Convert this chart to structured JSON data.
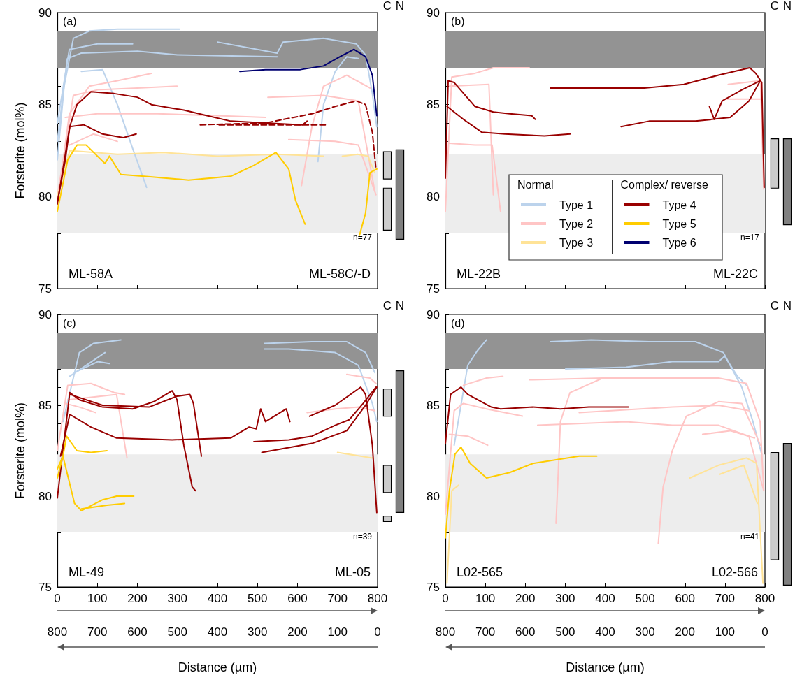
{
  "chart_data": [
    {
      "type": "line",
      "ylabel": "Forsterite (mol%)",
      "xlim": [
        0,
        800
      ],
      "xticks": [
        0,
        100,
        200,
        300,
        400,
        500,
        600,
        700,
        800
      ],
      "ylim": [
        75,
        90
      ],
      "yticks": [
        75,
        {
          "value": 76,
          "label": null
        },
        {
          "value": 77,
          "label": null
        },
        {
          "value": 78,
          "label": null
        },
        {
          "value": 79,
          "label": null
        },
        80,
        {
          "value": 81,
          "label": null
        },
        {
          "value": 82,
          "label": null
        },
        {
          "value": 83,
          "label": null
        },
        {
          "value": 84,
          "label": null
        },
        85,
        {
          "value": 86,
          "label": null
        },
        {
          "value": 87,
          "label": null
        },
        {
          "value": 88,
          "label": null
        },
        {
          "value": 89,
          "label": null
        },
        90
      ],
      "tick_labels": "y",
      "marker": "none",
      "legend": "right",
      "annotations": [
        "(a)",
        "ML-58A",
        "ML-58C/-D",
        "n=77",
        "Normal",
        "Complex/ reverse"
      ],
      "bands": [
        {
          "axis": "y",
          "from": 87,
          "to": 89,
          "color": "#939393"
        },
        {
          "axis": "y",
          "from": 78,
          "to": 82.3,
          "color": "#ededed"
        }
      ],
      "series": [
        {
          "name": "Type 1",
          "color": "#bcd3ec",
          "x": [
            0,
            17,
            40,
            80,
            150,
            305
          ],
          "values": [
            82,
            86,
            88.6,
            89,
            89.1,
            89.1
          ]
        },
        {
          "color": "#bcd3ec",
          "x": [
            0,
            25,
            60,
            200,
            300,
            549
          ],
          "values": [
            83,
            87.5,
            87.8,
            87.9,
            87.7,
            87.6
          ]
        },
        {
          "color": "#bcd3ec",
          "x": [
            0,
            30,
            100,
            188
          ],
          "values": [
            84,
            88,
            88.3,
            88.3
          ]
        },
        {
          "color": "#bcd3ec",
          "x": [
            60,
            113,
            150,
            190,
            223
          ],
          "values": [
            86.8,
            86.9,
            85,
            82.5,
            80.5
          ]
        },
        {
          "color": "#bcd3ec",
          "x": [
            400,
            549,
            564,
            665,
            747,
            770,
            787,
            798
          ],
          "values": [
            88.4,
            87.8,
            88.4,
            88.6,
            88.3,
            87.7,
            85.6,
            83.8
          ]
        },
        {
          "color": "#bcd3ec",
          "x": [
            651,
            665,
            694,
            723,
            752
          ],
          "values": [
            81.9,
            85,
            86.8,
            87.6,
            87.5
          ]
        },
        {
          "name": "Type 2",
          "color": "#ffc5c5",
          "x": [
            0,
            30,
            80,
            150,
            235
          ],
          "values": [
            79.6,
            84.5,
            86,
            86.3,
            86.7
          ]
        },
        {
          "color": "#ffc5c5",
          "x": [
            0,
            40,
            100,
            200,
            299
          ],
          "values": [
            80,
            85.5,
            85.8,
            85.9,
            86
          ]
        },
        {
          "color": "#ffc5c5",
          "x": [
            20,
            100,
            250,
            400,
            520
          ],
          "values": [
            84.3,
            84.5,
            84.5,
            84.4,
            84.3
          ]
        },
        {
          "color": "#ffc5c5",
          "x": [
            30,
            90,
            150
          ],
          "values": [
            82.8,
            83.4,
            83
          ]
        },
        {
          "color": "#ffc5c5",
          "x": [
            526,
            665,
            752,
            793
          ],
          "values": [
            85.4,
            85.5,
            85.2,
            80.3
          ]
        },
        {
          "color": "#ffc5c5",
          "x": [
            578,
            694,
            752,
            796
          ],
          "values": [
            83.1,
            83,
            82.8,
            80.1
          ]
        },
        {
          "color": "#ffc5c5",
          "x": [
            610,
            636,
            665,
            723,
            781
          ],
          "values": [
            80.6,
            83.8,
            86,
            86.6,
            85.9
          ]
        },
        {
          "name": "Type 3",
          "color": "#ffe397",
          "x": [
            0,
            31,
            150,
            264,
            400,
            550,
            665
          ],
          "values": [
            80,
            82.5,
            82.3,
            82.4,
            82.2,
            82.3,
            82.2
          ]
        },
        {
          "color": "#ffe397",
          "x": [
            712,
            750,
            776,
            793
          ],
          "values": [
            82.2,
            82.3,
            82.2,
            81.3
          ]
        },
        {
          "name": "Type 4",
          "color": "#990000",
          "x": [
            0,
            31,
            49,
            84,
            142,
            200,
            235,
            316,
            374,
            433,
            520,
            613,
            624
          ],
          "values": [
            79.6,
            83.8,
            85,
            85.7,
            85.6,
            85.4,
            85,
            84.7,
            84.4,
            84.1,
            84,
            83.9,
            84.1
          ]
        },
        {
          "color": "#990000",
          "x": [
            0,
            20,
            31,
            66,
            113,
            165,
            197
          ],
          "values": [
            79.7,
            82,
            83.8,
            83.9,
            83.4,
            83.2,
            83.4
          ]
        },
        {
          "color": "#990000",
          "line_style": "dashed",
          "x": [
            357,
            520,
            636,
            694,
            747,
            770,
            787,
            796
          ],
          "values": [
            83.9,
            84,
            84.5,
            84.9,
            85.2,
            85,
            83.5,
            81.5
          ]
        },
        {
          "color": "#990000",
          "line_style": "dashed",
          "x": [
            404,
            520,
            674
          ],
          "values": [
            83.9,
            83.9,
            83.9
          ]
        },
        {
          "name": "Type 5",
          "color": "#ffcc00",
          "x": [
            0,
            26,
            49,
            72,
            119,
            130,
            159,
            217,
            328,
            433,
            491,
            546,
            578,
            595,
            619
          ],
          "values": [
            79.2,
            82,
            82.8,
            82.8,
            81.8,
            82.2,
            81.2,
            81.1,
            80.9,
            81.1,
            81.7,
            82.4,
            81.5,
            79.8,
            78.5
          ]
        },
        {
          "color": "#ffcc00",
          "x": [
            755,
            770,
            781,
            798
          ],
          "values": [
            77.9,
            79.1,
            81.3,
            81.5
          ]
        },
        {
          "name": "Type 6",
          "color": "#000070",
          "x": [
            456,
            520,
            607,
            665,
            706,
            741,
            770,
            787,
            798
          ],
          "values": [
            86.8,
            86.9,
            86.9,
            87.1,
            87.6,
            88,
            87.6,
            86.6,
            84.4
          ]
        }
      ]
    },
    {
      "type": "bar",
      "categories": [
        "C",
        "N"
      ],
      "ylim": [
        75,
        90
      ],
      "tick_labels": false,
      "series": [
        {
          "colors": [
            "#cccccc",
            "#808080"
          ],
          "base": [
            81,
            77.7
          ],
          "values": [
            1.5,
            4.9
          ]
        },
        {
          "color": "#cccccc",
          "base": [
            78.2,
            null
          ],
          "values": [
            2.3,
            null
          ]
        }
      ]
    },
    {
      "type": "line",
      "xlim": [
        0,
        800
      ],
      "xticks": [
        0,
        100,
        200,
        300,
        400,
        500,
        600,
        700,
        800
      ],
      "ylim": [
        75,
        90
      ],
      "yticks": [
        75,
        {
          "value": 76,
          "label": null
        },
        {
          "value": 77,
          "label": null
        },
        {
          "value": 78,
          "label": null
        },
        {
          "value": 79,
          "label": null
        },
        80,
        {
          "value": 81,
          "label": null
        },
        {
          "value": 82,
          "label": null
        },
        {
          "value": 83,
          "label": null
        },
        {
          "value": 84,
          "label": null
        },
        85,
        {
          "value": 86,
          "label": null
        },
        {
          "value": 87,
          "label": null
        },
        {
          "value": 88,
          "label": null
        },
        {
          "value": 89,
          "label": null
        },
        90
      ],
      "tick_labels": "y",
      "marker": "none",
      "annotations": [
        "(b)",
        "ML-22B",
        "ML-22C",
        "n=17"
      ],
      "bands": [
        {
          "axis": "y",
          "from": 87,
          "to": 89,
          "color": "#939393"
        },
        {
          "axis": "y",
          "from": 78,
          "to": 82.3,
          "color": "#ededed"
        }
      ],
      "series": [
        {
          "color": "#ffc5c5",
          "x": [
            0,
            16,
            74,
            120,
            210
          ],
          "values": [
            79.2,
            86.5,
            86.7,
            87,
            87
          ]
        },
        {
          "color": "#ffc5c5",
          "x": [
            10,
            109,
            120
          ],
          "values": [
            86,
            86.1,
            80.1
          ]
        },
        {
          "color": "#ffc5c5",
          "x": [
            10,
            74,
            117,
            138
          ],
          "values": [
            82.9,
            82.8,
            82.8,
            79.2
          ]
        },
        {
          "color": "#ffc5c5",
          "x": [
            708,
            789,
            797
          ],
          "values": [
            86.1,
            86.3,
            80.4
          ]
        },
        {
          "color": "#ffc5c5",
          "x": [
            702,
            789
          ],
          "values": [
            85.3,
            85.3
          ]
        },
        {
          "color": "#990000",
          "x": [
            0,
            7,
            22,
            74,
            120,
            161,
            216,
            225
          ],
          "values": [
            81,
            86.3,
            86.2,
            84.9,
            84.6,
            84.5,
            84.4,
            84.2
          ]
        },
        {
          "color": "#990000",
          "x": [
            4,
            45,
            91,
            149,
            248,
            312
          ],
          "values": [
            84.9,
            84.2,
            83.5,
            83.4,
            83.3,
            83.4
          ]
        },
        {
          "color": "#990000",
          "x": [
            263,
            394,
            498,
            597,
            684,
            762,
            777,
            792,
            798
          ],
          "values": [
            85.9,
            85.9,
            85.9,
            86.1,
            86.6,
            87,
            86.7,
            86.2,
            80.5
          ]
        },
        {
          "color": "#990000",
          "x": [
            440,
            510,
            626,
            713,
            760,
            786
          ],
          "values": [
            83.8,
            84.1,
            84.1,
            84.3,
            85.2,
            86.2
          ]
        },
        {
          "color": "#990000",
          "x": [
            661,
            673,
            693,
            742,
            789
          ],
          "values": [
            84.9,
            84.2,
            85.2,
            85.8,
            86.3
          ]
        }
      ]
    },
    {
      "type": "bar",
      "categories": [
        "C",
        "N"
      ],
      "ylim": [
        75,
        90
      ],
      "tick_labels": false,
      "series": [
        {
          "colors": [
            "#cccccc",
            "#808080"
          ],
          "base": [
            80.5,
            78.5
          ],
          "values": [
            2.7,
            4.7
          ]
        }
      ]
    },
    {
      "type": "line",
      "ylabel": "Forsterite (mol%)",
      "xlabel": "Distance (µm)",
      "xlim": [
        0,
        800
      ],
      "xticks": [
        0,
        100,
        200,
        300,
        400,
        500,
        600,
        700,
        800
      ],
      "x2lim": [
        800,
        0
      ],
      "x2ticks": [
        800,
        700,
        600,
        500,
        400,
        300,
        200,
        100,
        0
      ],
      "ylim": [
        75,
        90
      ],
      "yticks": [
        75,
        {
          "value": 76,
          "label": null
        },
        {
          "value": 77,
          "label": null
        },
        {
          "value": 78,
          "label": null
        },
        {
          "value": 79,
          "label": null
        },
        80,
        {
          "value": 81,
          "label": null
        },
        {
          "value": 82,
          "label": null
        },
        {
          "value": 83,
          "label": null
        },
        {
          "value": 84,
          "label": null
        },
        85,
        {
          "value": 86,
          "label": null
        },
        {
          "value": 87,
          "label": null
        },
        {
          "value": 88,
          "label": null
        },
        {
          "value": 89,
          "label": null
        },
        90
      ],
      "marker": "none",
      "annotations": [
        "(c)",
        "ML-49",
        "ML-05",
        "n=39"
      ],
      "bands": [
        {
          "axis": "y",
          "from": 87,
          "to": 89,
          "color": "#939393"
        },
        {
          "axis": "y",
          "from": 78,
          "to": 82.3,
          "color": "#ededed"
        }
      ],
      "series": [
        {
          "color": "#bcd3ec",
          "x": [
            14,
            55,
            90,
            159
          ],
          "values": [
            84.1,
            87.9,
            88.4,
            88.6
          ]
        },
        {
          "color": "#bcd3ec",
          "x": [
            31,
            72,
            119
          ],
          "values": [
            86.6,
            87.2,
            87.9
          ]
        },
        {
          "color": "#bcd3ec",
          "x": [
            43,
            101,
            130
          ],
          "values": [
            86.8,
            87.4,
            87.3
          ]
        },
        {
          "color": "#bcd3ec",
          "x": [
            517,
            636,
            723,
            770,
            793
          ],
          "values": [
            88.4,
            88.5,
            88.5,
            87.9,
            86.8
          ]
        },
        {
          "color": "#bcd3ec",
          "x": [
            517,
            578,
            694,
            752,
            787,
            798
          ],
          "values": [
            88.1,
            88.1,
            87.9,
            87.2,
            85.1,
            84.1
          ]
        },
        {
          "color": "#ffc5c5",
          "x": [
            0,
            26,
            84,
            142,
            168
          ],
          "values": [
            82.5,
            86.1,
            86.2,
            85.7,
            85.6
          ]
        },
        {
          "color": "#ffc5c5",
          "x": [
            20,
            55,
            95
          ],
          "values": [
            85.1,
            84.9,
            84.6
          ]
        },
        {
          "color": "#ffc5c5",
          "x": [
            26,
            148,
            174
          ],
          "values": [
            85.3,
            85.6,
            82.1
          ]
        },
        {
          "color": "#ffc5c5",
          "x": [
            624,
            694,
            752,
            793
          ],
          "values": [
            84.6,
            84.8,
            84.9,
            84.7
          ]
        },
        {
          "color": "#ffc5c5",
          "x": [
            723,
            781,
            796
          ],
          "values": [
            86.7,
            86.5,
            86.2
          ]
        },
        {
          "color": "#ffe397",
          "x": [
            700,
            787
          ],
          "values": [
            82.4,
            82.1
          ]
        },
        {
          "color": "#990000",
          "x": [
            0,
            31,
            55,
            113,
            188,
            241,
            287,
            299,
            316,
            337,
            345
          ],
          "values": [
            79.9,
            85.7,
            85.3,
            84.9,
            84.8,
            85.2,
            85.8,
            85.3,
            82.8,
            80.5,
            80.3
          ]
        },
        {
          "color": "#990000",
          "x": [
            31,
            113,
            229,
            299,
            331,
            340,
            360
          ],
          "values": [
            85.6,
            85,
            84.9,
            85.5,
            85.6,
            85.1,
            82.2
          ]
        },
        {
          "color": "#990000",
          "x": [
            8,
            31,
            84,
            148,
            287,
            433,
            479,
            497,
            508,
            520,
            572,
            581
          ],
          "values": [
            82.2,
            84.5,
            83.8,
            83.2,
            83.1,
            83.2,
            83.8,
            83.7,
            84.8,
            84.1,
            84.8,
            84.1
          ]
        },
        {
          "color": "#990000",
          "x": [
            491,
            578,
            636,
            694,
            729,
            764,
            796
          ],
          "values": [
            83,
            83.1,
            83.3,
            83.9,
            84.2,
            85.1,
            86
          ]
        },
        {
          "color": "#990000",
          "x": [
            511,
            636,
            723,
            770,
            798
          ],
          "values": [
            82.4,
            82.9,
            83.6,
            85,
            86
          ]
        },
        {
          "color": "#990000",
          "x": [
            630,
            694,
            758,
            770,
            787,
            798
          ],
          "values": [
            84.4,
            85,
            86,
            85.6,
            82.8,
            79.1
          ]
        },
        {
          "color": "#ffcc00",
          "x": [
            0,
            14,
            23,
            49,
            84,
            124
          ],
          "values": [
            81,
            82.2,
            83.3,
            82.5,
            82.4,
            82.5
          ]
        },
        {
          "color": "#ffcc00",
          "x": [
            0,
            14,
            43,
            60,
            113,
            148,
            191
          ],
          "values": [
            81.5,
            82.2,
            79.6,
            79.2,
            79.8,
            80,
            80
          ]
        },
        {
          "color": "#ffcc00",
          "x": [
            60,
            124,
            168
          ],
          "values": [
            79.3,
            79.5,
            79.6
          ]
        }
      ]
    },
    {
      "type": "bar",
      "categories": [
        "C",
        "N"
      ],
      "ylim": [
        75,
        90
      ],
      "tick_labels": false,
      "series": [
        {
          "colors": [
            "#cccccc",
            "#808080"
          ],
          "base": [
            84.4,
            79.1
          ],
          "values": [
            1.5,
            7.8
          ]
        },
        {
          "color": "#cccccc",
          "base": [
            80.2,
            null
          ],
          "values": [
            1.5,
            null
          ]
        },
        {
          "color": "#cccccc",
          "base": [
            78.6,
            null
          ],
          "values": [
            0.3,
            null
          ]
        }
      ]
    },
    {
      "type": "line",
      "xlabel": "Distance (µm)",
      "xlim": [
        0,
        800
      ],
      "xticks": [
        0,
        100,
        200,
        300,
        400,
        500,
        600,
        700,
        800
      ],
      "x2lim": [
        800,
        0
      ],
      "x2ticks": [
        800,
        700,
        600,
        500,
        400,
        300,
        200,
        100,
        0
      ],
      "ylim": [
        75,
        90
      ],
      "yticks": [
        75,
        {
          "value": 76,
          "label": null
        },
        {
          "value": 77,
          "label": null
        },
        {
          "value": 78,
          "label": null
        },
        {
          "value": 79,
          "label": null
        },
        80,
        {
          "value": 81,
          "label": null
        },
        {
          "value": 82,
          "label": null
        },
        {
          "value": 83,
          "label": null
        },
        {
          "value": 84,
          "label": null
        },
        85,
        {
          "value": 86,
          "label": null
        },
        {
          "value": 87,
          "label": null
        },
        {
          "value": 88,
          "label": null
        },
        {
          "value": 89,
          "label": null
        },
        90
      ],
      "marker": "none",
      "annotations": [
        "(d)",
        "L02-565",
        "L02-566",
        "n=41"
      ],
      "bands": [
        {
          "axis": "y",
          "from": 87,
          "to": 89,
          "color": "#939393"
        },
        {
          "axis": "y",
          "from": 78,
          "to": 82.3,
          "color": "#ededed"
        }
      ],
      "series": [
        {
          "color": "#bcd3ec",
          "x": [
            22,
            56,
            80,
            103
          ],
          "values": [
            82.8,
            87.2,
            88,
            88.6
          ]
        },
        {
          "color": "#bcd3ec",
          "x": [
            263,
            365,
            510,
            626,
            696,
            742,
            770,
            792
          ],
          "values": [
            88.5,
            88.6,
            88.5,
            88.5,
            87.9,
            86,
            84.1,
            82.3
          ]
        },
        {
          "color": "#bcd3ec",
          "x": [
            301,
            452,
            568,
            684,
            699,
            731,
            754
          ],
          "values": [
            87,
            87.1,
            87.4,
            87.4,
            87.7,
            86.6,
            86.1
          ]
        },
        {
          "color": "#ffc5c5",
          "x": [
            0,
            22,
            45,
            103,
            193
          ],
          "values": [
            79,
            84.7,
            85.1,
            84.8,
            84.4
          ]
        },
        {
          "color": "#ffc5c5",
          "x": [
            45,
            103,
            144
          ],
          "values": [
            86.1,
            86.5,
            86.6
          ]
        },
        {
          "color": "#ffc5c5",
          "x": [
            10,
            56,
            106
          ],
          "values": [
            83.4,
            83.3,
            82.8
          ]
        },
        {
          "color": "#ffc5c5",
          "x": [
            210,
            394,
            568,
            684,
            754,
            788,
            797
          ],
          "values": [
            86.4,
            86.5,
            86.5,
            86.5,
            86.2,
            84.1,
            80.3
          ]
        },
        {
          "color": "#ffc5c5",
          "x": [
            277,
            288,
            312,
            394
          ],
          "values": [
            78.5,
            84.1,
            85.7,
            86.5
          ]
        },
        {
          "color": "#ffc5c5",
          "x": [
            533,
            545,
            568,
            603,
            684,
            742,
            789
          ],
          "values": [
            77.4,
            80.5,
            82.5,
            84.4,
            85.2,
            85.1,
            82.8
          ]
        },
        {
          "color": "#ffc5c5",
          "x": [
            231,
            452,
            568,
            684,
            760,
            797
          ],
          "values": [
            83.9,
            84.1,
            83.9,
            83.9,
            83.3,
            80.3
          ]
        },
        {
          "color": "#ffc5c5",
          "x": [
            335,
            568,
            684,
            760
          ],
          "values": [
            84.6,
            84.9,
            85,
            84.7
          ]
        },
        {
          "color": "#ffc5c5",
          "x": [
            644,
            713,
            774
          ],
          "values": [
            83.4,
            83.6,
            83.2
          ]
        },
        {
          "color": "#ffe397",
          "x": [
            4,
            16,
            33
          ],
          "values": [
            75.2,
            80.3,
            80.6
          ]
        },
        {
          "color": "#ffe397",
          "x": [
            612,
            684,
            754,
            779,
            795
          ],
          "values": [
            81,
            81.7,
            82.1,
            81.8,
            75.2
          ]
        },
        {
          "color": "#ffe397",
          "x": [
            687,
            747,
            781
          ],
          "values": [
            81.2,
            81.7,
            79.6
          ]
        },
        {
          "color": "#990000",
          "x": [
            0,
            13,
            39,
            56,
            115,
            138,
            219,
            288,
            359,
            458
          ],
          "values": [
            82.9,
            85.6,
            86,
            85.6,
            84.9,
            84.8,
            84.9,
            84.8,
            84.9,
            84.9
          ]
        },
        {
          "color": "#ffcc00",
          "x": [
            0,
            10,
            24,
            39,
            62,
            103,
            161,
            219,
            277,
            335,
            379
          ],
          "values": [
            77.7,
            80.3,
            82.3,
            82.7,
            81.8,
            81,
            81.3,
            81.8,
            82,
            82.2,
            82.2
          ]
        }
      ]
    },
    {
      "type": "bar",
      "categories": [
        "C",
        "N"
      ],
      "ylim": [
        75,
        90
      ],
      "tick_labels": false,
      "series": [
        {
          "colors": [
            "#cccccc",
            "#808080"
          ],
          "base": [
            76.5,
            75.1
          ],
          "values": [
            5.9,
            7.8
          ]
        }
      ]
    }
  ]
}
